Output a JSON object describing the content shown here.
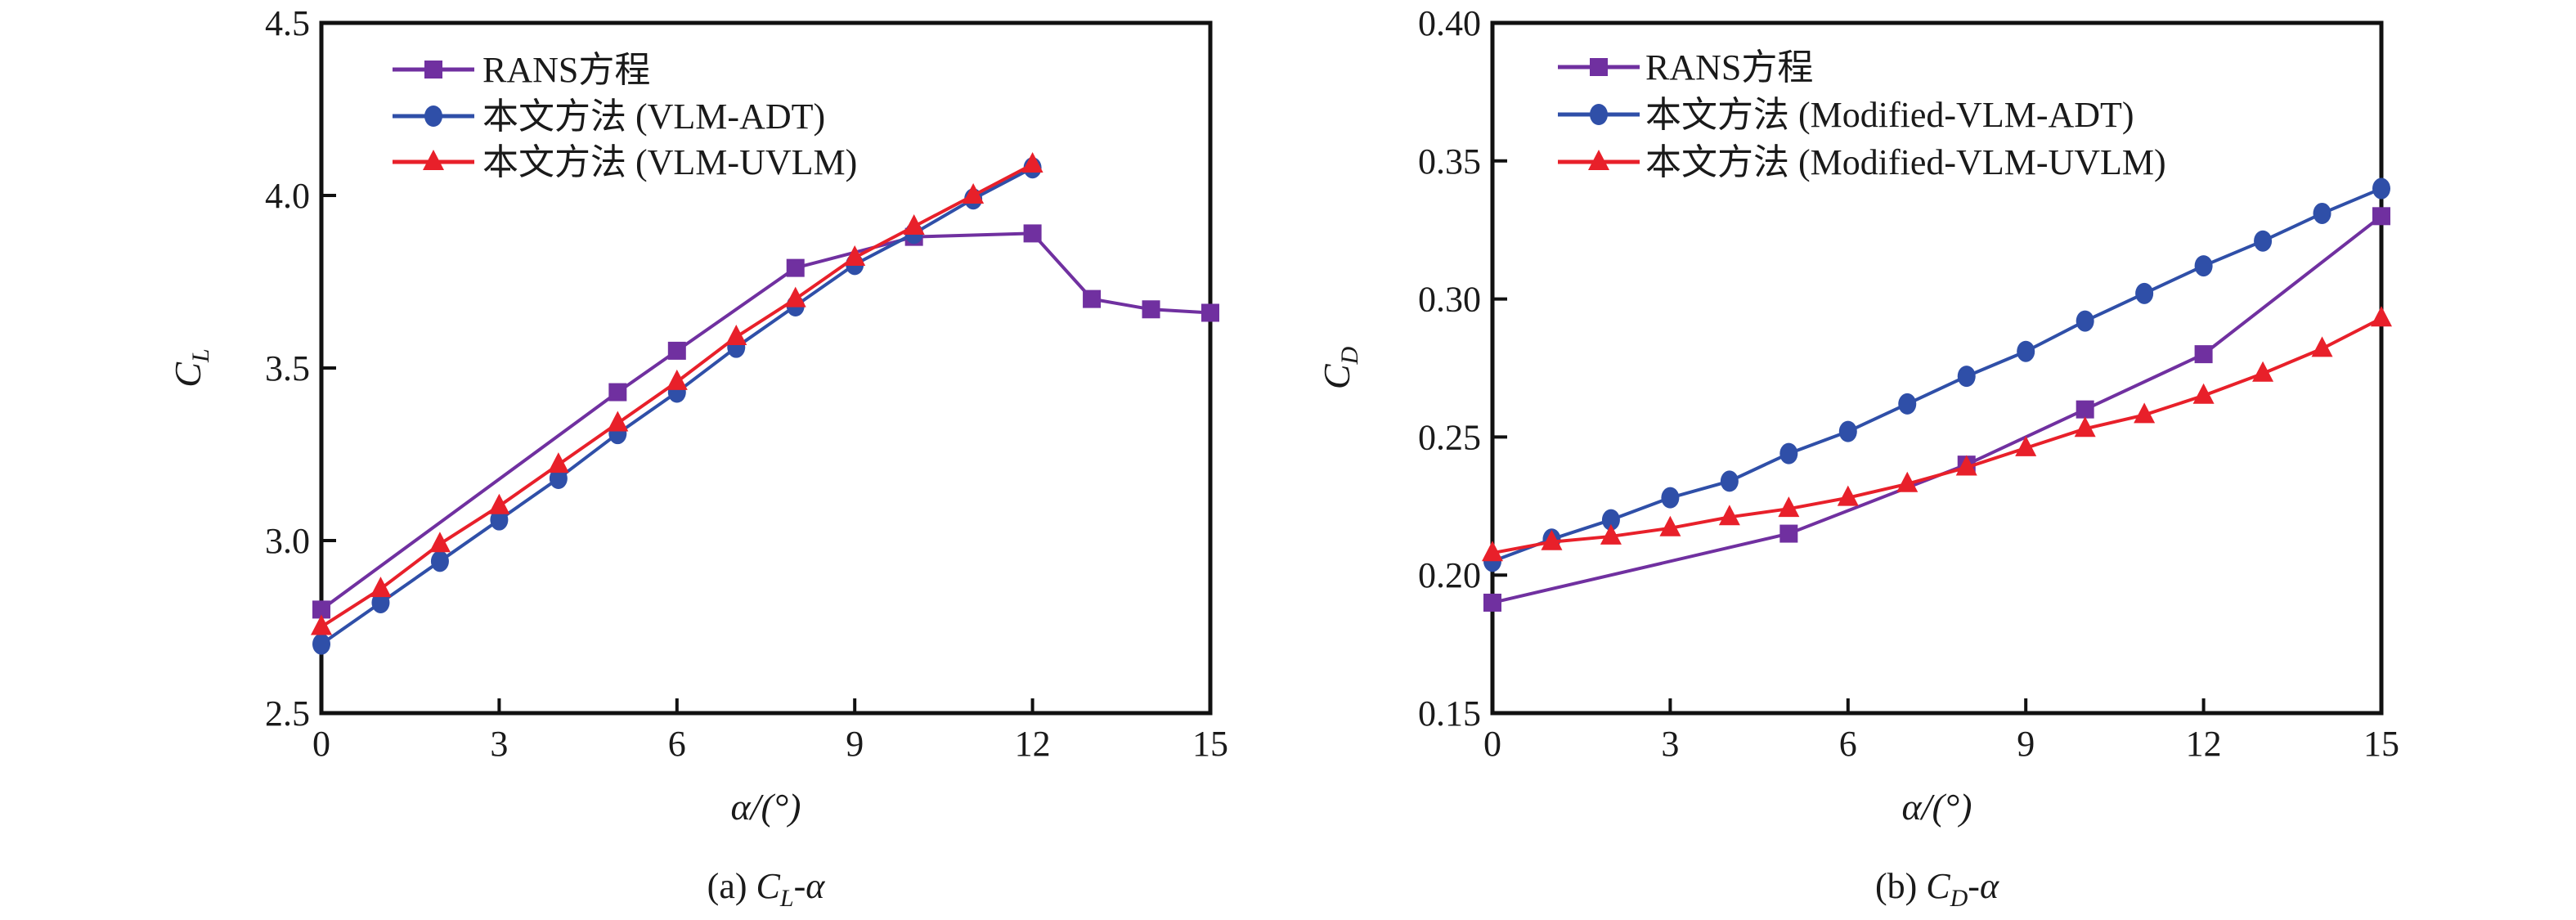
{
  "chart_data": [
    {
      "type": "line",
      "panel": "a",
      "caption_prefix": "(a) ",
      "caption_main": "C",
      "caption_sub": "L",
      "caption_suffix": "-α",
      "xlabel": "α/(°)",
      "ylabel_main": "C",
      "ylabel_sub": "L",
      "xlim": [
        0,
        15
      ],
      "ylim": [
        2.5,
        4.5
      ],
      "xticks": [
        0,
        3,
        6,
        9,
        12,
        15
      ],
      "xtick_labels": [
        "0",
        "3",
        "6",
        "9",
        "12",
        "15"
      ],
      "yticks": [
        2.5,
        3.0,
        3.5,
        4.0,
        4.5
      ],
      "ytick_labels": [
        "2.5",
        "3.0",
        "3.5",
        "4.0",
        "4.5"
      ],
      "grid": false,
      "legend_position": "top-left",
      "series": [
        {
          "name": "RANS方程",
          "marker": "square",
          "color": "#7030a0",
          "x": [
            0,
            5,
            6,
            8,
            10,
            12,
            13,
            14,
            15
          ],
          "y": [
            2.8,
            3.43,
            3.55,
            3.79,
            3.88,
            3.89,
            3.7,
            3.67,
            3.66
          ]
        },
        {
          "name": "本文方法 (VLM-ADT)",
          "marker": "circle",
          "color": "#2f4fa8",
          "x": [
            0,
            1,
            2,
            3,
            4,
            5,
            6,
            7,
            8,
            9,
            10,
            11,
            12
          ],
          "y": [
            2.7,
            2.82,
            2.94,
            3.06,
            3.18,
            3.31,
            3.43,
            3.56,
            3.68,
            3.8,
            3.89,
            3.99,
            4.08
          ]
        },
        {
          "name": "本文方法 (VLM-UVLM)",
          "marker": "triangle",
          "color": "#e8202a",
          "x": [
            0,
            1,
            2,
            3,
            4,
            5,
            6,
            7,
            8,
            9,
            10,
            11,
            12
          ],
          "y": [
            2.75,
            2.86,
            2.99,
            3.1,
            3.22,
            3.34,
            3.46,
            3.59,
            3.7,
            3.82,
            3.91,
            4.0,
            4.09
          ]
        }
      ]
    },
    {
      "type": "line",
      "panel": "b",
      "caption_prefix": "(b) ",
      "caption_main": "C",
      "caption_sub": "D",
      "caption_suffix": "-α",
      "xlabel": "α/(°)",
      "ylabel_main": "C",
      "ylabel_sub": "D",
      "xlim": [
        0,
        15
      ],
      "ylim": [
        0.15,
        0.4
      ],
      "xticks": [
        0,
        3,
        6,
        9,
        12,
        15
      ],
      "xtick_labels": [
        "0",
        "3",
        "6",
        "9",
        "12",
        "15"
      ],
      "yticks": [
        0.15,
        0.2,
        0.25,
        0.3,
        0.35,
        0.4
      ],
      "ytick_labels": [
        "0.15",
        "0.20",
        "0.25",
        "0.30",
        "0.35",
        "0.40"
      ],
      "grid": false,
      "legend_position": "top-left",
      "series": [
        {
          "name": "RANS方程",
          "marker": "square",
          "color": "#7030a0",
          "x": [
            0,
            5,
            8,
            10,
            12,
            15
          ],
          "y": [
            0.19,
            0.215,
            0.24,
            0.26,
            0.28,
            0.33
          ]
        },
        {
          "name": "本文方法 (Modified-VLM-ADT)",
          "marker": "circle",
          "color": "#2f4fa8",
          "x": [
            0,
            1,
            2,
            3,
            4,
            5,
            6,
            7,
            8,
            9,
            10,
            11,
            12,
            13,
            14,
            15
          ],
          "y": [
            0.205,
            0.213,
            0.22,
            0.228,
            0.234,
            0.244,
            0.252,
            0.262,
            0.272,
            0.281,
            0.292,
            0.302,
            0.312,
            0.321,
            0.331,
            0.34
          ]
        },
        {
          "name": "本文方法 (Modified-VLM-UVLM)",
          "marker": "triangle",
          "color": "#e8202a",
          "x": [
            0,
            1,
            2,
            3,
            4,
            5,
            6,
            7,
            8,
            9,
            10,
            11,
            12,
            13,
            14,
            15
          ],
          "y": [
            0.208,
            0.212,
            0.214,
            0.217,
            0.221,
            0.224,
            0.228,
            0.233,
            0.239,
            0.246,
            0.253,
            0.258,
            0.265,
            0.273,
            0.282,
            0.293
          ]
        }
      ]
    }
  ]
}
